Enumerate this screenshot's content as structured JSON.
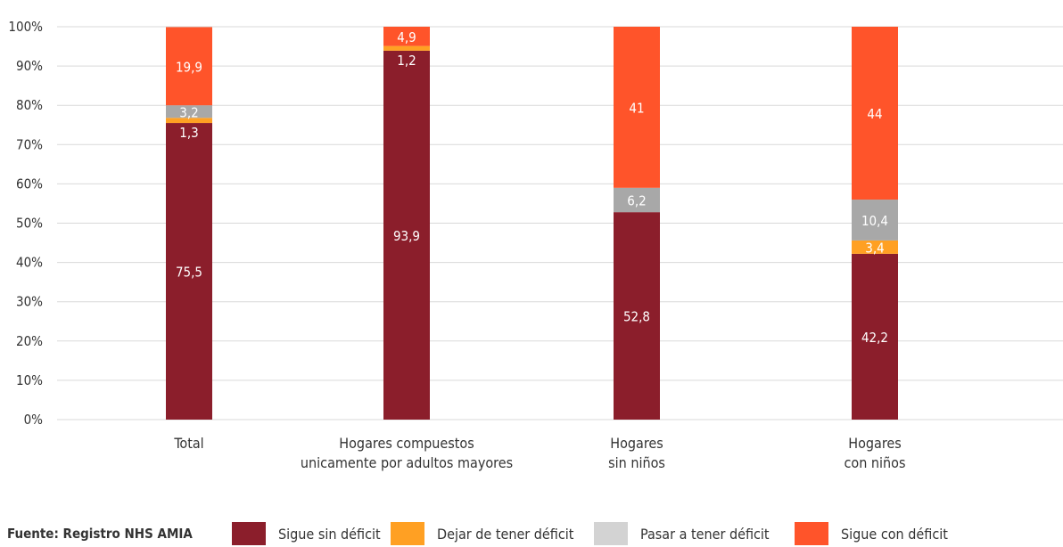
{
  "source": "Fuente: Registro NHS AMIA",
  "chart_data": {
    "type": "bar",
    "stacked": true,
    "categories": [
      [
        "Total"
      ],
      [
        "Hogares compuestos",
        "unicamente por adultos mayores"
      ],
      [
        "Hogares",
        "sin niños"
      ],
      [
        "Hogares",
        "con niños"
      ]
    ],
    "series": [
      {
        "name": "Sigue sin déficit",
        "color": "#8B1E2B",
        "values": [
          75.5,
          93.9,
          52.8,
          42.2
        ],
        "labels": [
          "75,5",
          "93,9",
          "52,8",
          "42,2"
        ]
      },
      {
        "name": "Dejar de tener déficit",
        "color": "#FFA023",
        "values": [
          1.3,
          1.2,
          0,
          3.4
        ],
        "labels": [
          "1,3",
          "1,2",
          "",
          "3,4"
        ]
      },
      {
        "name": "Pasar a tener déficit",
        "color": "#A8A8A8",
        "values": [
          3.2,
          0,
          6.2,
          10.4
        ],
        "labels": [
          "3,2",
          "",
          "6,2",
          "10,4"
        ]
      },
      {
        "name": "Sigue con déficit",
        "color": "#FF542A",
        "values": [
          19.9,
          4.9,
          41,
          44
        ],
        "labels": [
          "19,9",
          "4,9",
          "41",
          "44"
        ]
      }
    ],
    "legend_colors": [
      "#8B1E2B",
      "#FFA023",
      "#D3D3D3",
      "#FF542A"
    ],
    "yticks": [
      "0%",
      "10%",
      "20%",
      "30%",
      "40%",
      "50%",
      "60%",
      "70%",
      "80%",
      "90%",
      "100%"
    ],
    "ylim": [
      0,
      100
    ],
    "grid": true,
    "legend_position": "bottom"
  }
}
